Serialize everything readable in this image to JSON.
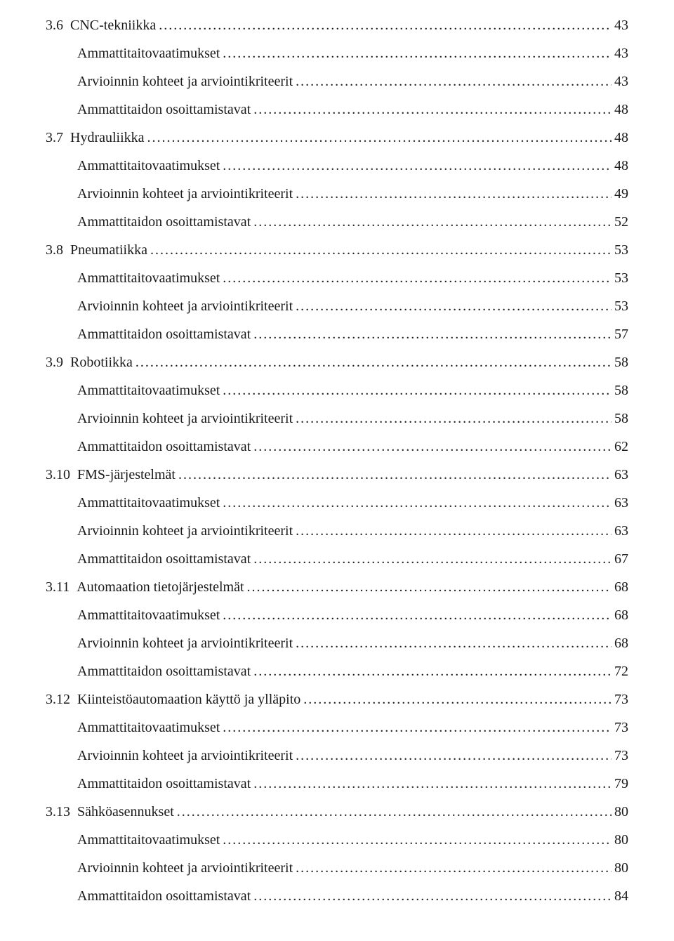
{
  "font_family": "Georgia, serif",
  "font_size_pt": 15,
  "text_color": "#1a1a1a",
  "background_color": "#ffffff",
  "line_height": 1.6,
  "entries": [
    {
      "num": "3.6",
      "title": "CNC-tekniikka",
      "page": "43",
      "indent": 0
    },
    {
      "num": "",
      "title": "Ammattitaitovaatimukset",
      "page": "43",
      "indent": 1
    },
    {
      "num": "",
      "title": "Arvioinnin kohteet ja arviointikriteerit",
      "page": "43",
      "indent": 1
    },
    {
      "num": "",
      "title": "Ammattitaidon osoittamistavat",
      "page": "48",
      "indent": 1
    },
    {
      "num": "3.7",
      "title": "Hydrauliikka",
      "page": "48",
      "indent": 0
    },
    {
      "num": "",
      "title": "Ammattitaitovaatimukset",
      "page": "48",
      "indent": 1
    },
    {
      "num": "",
      "title": "Arvioinnin kohteet ja arviointikriteerit",
      "page": "49",
      "indent": 1
    },
    {
      "num": "",
      "title": "Ammattitaidon osoittamistavat",
      "page": "52",
      "indent": 1
    },
    {
      "num": "3.8",
      "title": "Pneumatiikka",
      "page": "53",
      "indent": 0
    },
    {
      "num": "",
      "title": "Ammattitaitovaatimukset",
      "page": "53",
      "indent": 1
    },
    {
      "num": "",
      "title": "Arvioinnin kohteet ja arviointikriteerit",
      "page": "53",
      "indent": 1
    },
    {
      "num": "",
      "title": "Ammattitaidon osoittamistavat",
      "page": "57",
      "indent": 1
    },
    {
      "num": "3.9",
      "title": "Robotiikka",
      "page": "58",
      "indent": 0
    },
    {
      "num": "",
      "title": "Ammattitaitovaatimukset",
      "page": "58",
      "indent": 1
    },
    {
      "num": "",
      "title": "Arvioinnin kohteet ja arviointikriteerit",
      "page": "58",
      "indent": 1
    },
    {
      "num": "",
      "title": "Ammattitaidon osoittamistavat",
      "page": "62",
      "indent": 1
    },
    {
      "num": "3.10",
      "title": "FMS-järjestelmät",
      "page": "63",
      "indent": 0
    },
    {
      "num": "",
      "title": "Ammattitaitovaatimukset",
      "page": "63",
      "indent": 1
    },
    {
      "num": "",
      "title": "Arvioinnin kohteet ja arviointikriteerit",
      "page": "63",
      "indent": 1
    },
    {
      "num": "",
      "title": "Ammattitaidon osoittamistavat",
      "page": "67",
      "indent": 1
    },
    {
      "num": "3.11",
      "title": "Automaation tietojärjestelmät",
      "page": "68",
      "indent": 0
    },
    {
      "num": "",
      "title": "Ammattitaitovaatimukset",
      "page": "68",
      "indent": 1
    },
    {
      "num": "",
      "title": "Arvioinnin kohteet ja arviointikriteerit",
      "page": "68",
      "indent": 1
    },
    {
      "num": "",
      "title": "Ammattitaidon osoittamistavat",
      "page": "72",
      "indent": 1
    },
    {
      "num": "3.12",
      "title": "Kiinteistöautomaation käyttö ja ylläpito",
      "page": "73",
      "indent": 0
    },
    {
      "num": "",
      "title": "Ammattitaitovaatimukset",
      "page": "73",
      "indent": 1
    },
    {
      "num": "",
      "title": "Arvioinnin kohteet ja arviointikriteerit",
      "page": "73",
      "indent": 1
    },
    {
      "num": "",
      "title": "Ammattitaidon osoittamistavat",
      "page": "79",
      "indent": 1
    },
    {
      "num": "3.13",
      "title": "Sähköasennukset",
      "page": "80",
      "indent": 0
    },
    {
      "num": "",
      "title": "Ammattitaitovaatimukset",
      "page": "80",
      "indent": 1
    },
    {
      "num": "",
      "title": "Arvioinnin kohteet ja arviointikriteerit",
      "page": "80",
      "indent": 1
    },
    {
      "num": "",
      "title": "Ammattitaidon osoittamistavat",
      "page": "84",
      "indent": 1
    }
  ]
}
